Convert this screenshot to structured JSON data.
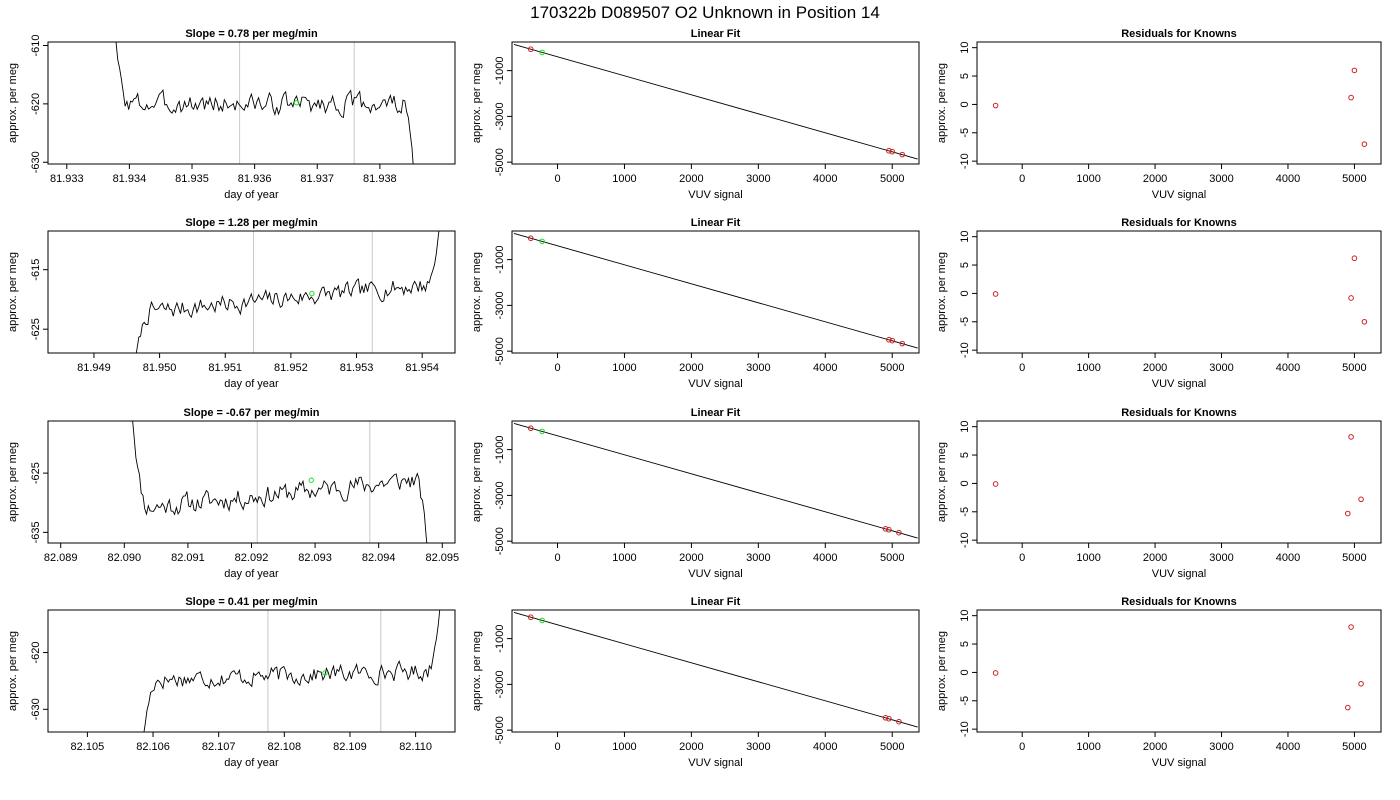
{
  "figure_title": "170322b     D089507   O2 Unknown in Position  14",
  "colors": {
    "trace": "#000000",
    "marker_line": "#c8c8c8",
    "known": "#cc2222",
    "unknown": "#22dd22",
    "frame": "#000000"
  },
  "chart_data": [
    {
      "type": "line",
      "row": 0,
      "col": 0,
      "title": "Slope =  0.78  per meg/min",
      "xlabel": "day of year",
      "ylabel": "approx. per meg",
      "xlim": [
        81.9327,
        81.9392
      ],
      "ylim": [
        -630.3,
        -609.4
      ],
      "xticks": [
        81.933,
        81.934,
        81.935,
        81.936,
        81.937,
        81.938
      ],
      "xtick_labels": [
        "81.933",
        "81.934",
        "81.935",
        "81.936",
        "81.937",
        "81.938"
      ],
      "yticks": [
        -630,
        -620,
        -610
      ],
      "ytick_labels": [
        "-630",
        "-620",
        "-610"
      ],
      "trace_start": 81.9337,
      "trace_end": 81.9386,
      "trace_base": -620,
      "trace_amp": 2.0,
      "trace_slope": 0.0,
      "start_y": -600,
      "end_y": -640,
      "seed": 3,
      "vlines": [
        81.93576,
        81.93759
      ],
      "green_point": [
        81.93667,
        -619.8
      ]
    },
    {
      "type": "scatter",
      "row": 0,
      "col": 1,
      "title": "Linear Fit",
      "xlabel": "VUV signal",
      "ylabel": "approx. per meg",
      "xlim": [
        -680,
        5400
      ],
      "ylim": [
        -5080,
        250
      ],
      "xticks": [
        0,
        1000,
        2000,
        3000,
        4000,
        5000
      ],
      "xtick_labels": [
        "0",
        "1000",
        "2000",
        "3000",
        "4000",
        "5000"
      ],
      "yticks": [
        -5000,
        -3000,
        -1000
      ],
      "ytick_labels": [
        "-5000",
        "-3000",
        "-1000"
      ],
      "fit_line": [
        [
          -650,
          143
        ],
        [
          5380,
          -4862
        ]
      ],
      "known_points": [
        [
          -400,
          -65
        ],
        [
          4950,
          -4500
        ],
        [
          5000,
          -4540
        ],
        [
          5150,
          -4670
        ]
      ],
      "unknown_points": [
        [
          -230,
          -205
        ]
      ]
    },
    {
      "type": "scatter",
      "row": 0,
      "col": 2,
      "title": "Residuals for Knowns",
      "xlabel": "VUV signal",
      "ylabel": "approx. per meg",
      "xlim": [
        -680,
        5400
      ],
      "ylim": [
        -10.5,
        11
      ],
      "xticks": [
        0,
        1000,
        2000,
        3000,
        4000,
        5000
      ],
      "xtick_labels": [
        "0",
        "1000",
        "2000",
        "3000",
        "4000",
        "5000"
      ],
      "yticks": [
        -10,
        -5,
        0,
        5,
        10
      ],
      "ytick_labels": [
        "-10",
        "-5",
        "0",
        "5",
        "10"
      ],
      "known_points": [
        [
          -400,
          -0.2
        ],
        [
          4950,
          1.2
        ],
        [
          5000,
          6.0
        ],
        [
          5150,
          -7.0
        ]
      ]
    },
    {
      "type": "line",
      "row": 1,
      "col": 0,
      "title": "Slope =  1.28  per meg/min",
      "xlabel": "day of year",
      "ylabel": "approx. per meg",
      "xlim": [
        81.9483,
        81.9545
      ],
      "ylim": [
        -629,
        -608.5
      ],
      "xticks": [
        81.949,
        81.95,
        81.951,
        81.952,
        81.953,
        81.954
      ],
      "xtick_labels": [
        "81.949",
        "81.950",
        "81.951",
        "81.952",
        "81.953",
        "81.954"
      ],
      "yticks": [
        -625,
        -615
      ],
      "ytick_labels": [
        "-625",
        "-615"
      ],
      "trace_start": 81.9496,
      "trace_end": 81.9543,
      "trace_base": -619.8,
      "trace_amp": 1.8,
      "trace_slope": 1.25,
      "start_y": -632,
      "end_y": -604,
      "seed": 7,
      "vlines": [
        81.95143,
        81.95324
      ],
      "green_point": [
        81.95232,
        -619.0
      ]
    },
    {
      "type": "scatter",
      "row": 1,
      "col": 1,
      "title": "Linear Fit",
      "xlabel": "VUV signal",
      "ylabel": "approx. per meg",
      "xlim": [
        -680,
        5400
      ],
      "ylim": [
        -5080,
        250
      ],
      "xticks": [
        0,
        1000,
        2000,
        3000,
        4000,
        5000
      ],
      "xtick_labels": [
        "0",
        "1000",
        "2000",
        "3000",
        "4000",
        "5000"
      ],
      "yticks": [
        -5000,
        -3000,
        -1000
      ],
      "ytick_labels": [
        "-5000",
        "-3000",
        "-1000"
      ],
      "fit_line": [
        [
          -650,
          143
        ],
        [
          5380,
          -4862
        ]
      ],
      "known_points": [
        [
          -400,
          -65
        ],
        [
          4950,
          -4500
        ],
        [
          5000,
          -4540
        ],
        [
          5150,
          -4670
        ]
      ],
      "unknown_points": [
        [
          -230,
          -205
        ]
      ]
    },
    {
      "type": "scatter",
      "row": 1,
      "col": 2,
      "title": "Residuals for Knowns",
      "xlabel": "VUV signal",
      "ylabel": "approx. per meg",
      "xlim": [
        -680,
        5400
      ],
      "ylim": [
        -10.5,
        11
      ],
      "xticks": [
        0,
        1000,
        2000,
        3000,
        4000,
        5000
      ],
      "xtick_labels": [
        "0",
        "1000",
        "2000",
        "3000",
        "4000",
        "5000"
      ],
      "yticks": [
        -10,
        -5,
        0,
        5,
        10
      ],
      "ytick_labels": [
        "-10",
        "-5",
        "0",
        "5",
        "10"
      ],
      "known_points": [
        [
          -400,
          -0.1
        ],
        [
          4950,
          -0.8
        ],
        [
          5000,
          6.2
        ],
        [
          5150,
          -5.0
        ]
      ]
    },
    {
      "type": "line",
      "row": 2,
      "col": 0,
      "title": "Slope =  -0.67  per meg/min",
      "xlabel": "day of year",
      "ylabel": "approx. per meg",
      "xlim": [
        82.0888,
        82.0952
      ],
      "ylim": [
        -636.8,
        -616.2
      ],
      "xticks": [
        82.089,
        82.09,
        82.091,
        82.092,
        82.093,
        82.094,
        82.095
      ],
      "xtick_labels": [
        "82.089",
        "82.090",
        "82.091",
        "82.092",
        "82.093",
        "82.094",
        "82.095"
      ],
      "yticks": [
        -635,
        -625
      ],
      "ytick_labels": [
        "-635",
        "-625"
      ],
      "trace_start": 82.0901,
      "trace_end": 82.0948,
      "trace_base": -628.5,
      "trace_amp": 2.0,
      "trace_slope": 1.3,
      "start_y": -612,
      "end_y": -642,
      "seed": 11,
      "vlines": [
        82.09209,
        82.09386
      ],
      "green_point": [
        82.09294,
        -626.2
      ]
    },
    {
      "type": "scatter",
      "row": 2,
      "col": 1,
      "title": "Linear Fit",
      "xlabel": "VUV signal",
      "ylabel": "approx. per meg",
      "xlim": [
        -680,
        5400
      ],
      "ylim": [
        -5080,
        250
      ],
      "xticks": [
        0,
        1000,
        2000,
        3000,
        4000,
        5000
      ],
      "xtick_labels": [
        "0",
        "1000",
        "2000",
        "3000",
        "4000",
        "5000"
      ],
      "yticks": [
        -5000,
        -3000,
        -1000
      ],
      "ytick_labels": [
        "-5000",
        "-3000",
        "-1000"
      ],
      "fit_line": [
        [
          -650,
          143
        ],
        [
          5380,
          -4862
        ]
      ],
      "known_points": [
        [
          -400,
          -65
        ],
        [
          4900,
          -4460
        ],
        [
          4950,
          -4500
        ],
        [
          5100,
          -4630
        ]
      ],
      "unknown_points": [
        [
          -230,
          -205
        ]
      ]
    },
    {
      "type": "scatter",
      "row": 2,
      "col": 2,
      "title": "Residuals for Knowns",
      "xlabel": "VUV signal",
      "ylabel": "approx. per meg",
      "xlim": [
        -680,
        5400
      ],
      "ylim": [
        -10.5,
        11
      ],
      "xticks": [
        0,
        1000,
        2000,
        3000,
        4000,
        5000
      ],
      "xtick_labels": [
        "0",
        "1000",
        "2000",
        "3000",
        "4000",
        "5000"
      ],
      "yticks": [
        -10,
        -5,
        0,
        5,
        10
      ],
      "ytick_labels": [
        "-10",
        "-5",
        "0",
        "5",
        "10"
      ],
      "known_points": [
        [
          -400,
          -0.1
        ],
        [
          4900,
          -5.3
        ],
        [
          4950,
          8.2
        ],
        [
          5100,
          -2.8
        ]
      ]
    },
    {
      "type": "line",
      "row": 3,
      "col": 0,
      "title": "Slope =  0.41  per meg/min",
      "xlabel": "day of year",
      "ylabel": "approx. per meg",
      "xlim": [
        82.1044,
        82.1106
      ],
      "ylim": [
        -634,
        -612.5
      ],
      "xticks": [
        82.105,
        82.106,
        82.107,
        82.108,
        82.109,
        82.11
      ],
      "xtick_labels": [
        "82.105",
        "82.106",
        "82.107",
        "82.108",
        "82.109",
        "82.110"
      ],
      "yticks": [
        -630,
        -620
      ],
      "ytick_labels": [
        "-630",
        "-620"
      ],
      "trace_start": 82.1058,
      "trace_end": 82.1104,
      "trace_base": -624,
      "trace_amp": 1.8,
      "trace_slope": 0.4,
      "start_y": -640,
      "end_y": -608,
      "seed": 17,
      "vlines": [
        82.10775,
        82.10947
      ],
      "green_point": [
        82.10862,
        -623.6
      ]
    },
    {
      "type": "scatter",
      "row": 3,
      "col": 1,
      "title": "Linear Fit",
      "xlabel": "VUV signal",
      "ylabel": "approx. per meg",
      "xlim": [
        -680,
        5400
      ],
      "ylim": [
        -5080,
        250
      ],
      "xticks": [
        0,
        1000,
        2000,
        3000,
        4000,
        5000
      ],
      "xtick_labels": [
        "0",
        "1000",
        "2000",
        "3000",
        "4000",
        "5000"
      ],
      "yticks": [
        -5000,
        -3000,
        -1000
      ],
      "ytick_labels": [
        "-5000",
        "-3000",
        "-1000"
      ],
      "fit_line": [
        [
          -650,
          143
        ],
        [
          5380,
          -4862
        ]
      ],
      "known_points": [
        [
          -400,
          -65
        ],
        [
          4900,
          -4460
        ],
        [
          4950,
          -4500
        ],
        [
          5100,
          -4630
        ]
      ],
      "unknown_points": [
        [
          -230,
          -205
        ]
      ]
    },
    {
      "type": "scatter",
      "row": 3,
      "col": 2,
      "title": "Residuals for Knowns",
      "xlabel": "VUV signal",
      "ylabel": "approx. per meg",
      "xlim": [
        -680,
        5400
      ],
      "ylim": [
        -10.5,
        11
      ],
      "xticks": [
        0,
        1000,
        2000,
        3000,
        4000,
        5000
      ],
      "xtick_labels": [
        "0",
        "1000",
        "2000",
        "3000",
        "4000",
        "5000"
      ],
      "yticks": [
        -10,
        -5,
        0,
        5,
        10
      ],
      "ytick_labels": [
        "-10",
        "-5",
        "0",
        "5",
        "10"
      ],
      "known_points": [
        [
          -400,
          -0.1
        ],
        [
          4900,
          -6.2
        ],
        [
          4950,
          8.0
        ],
        [
          5100,
          -2.0
        ]
      ]
    }
  ]
}
